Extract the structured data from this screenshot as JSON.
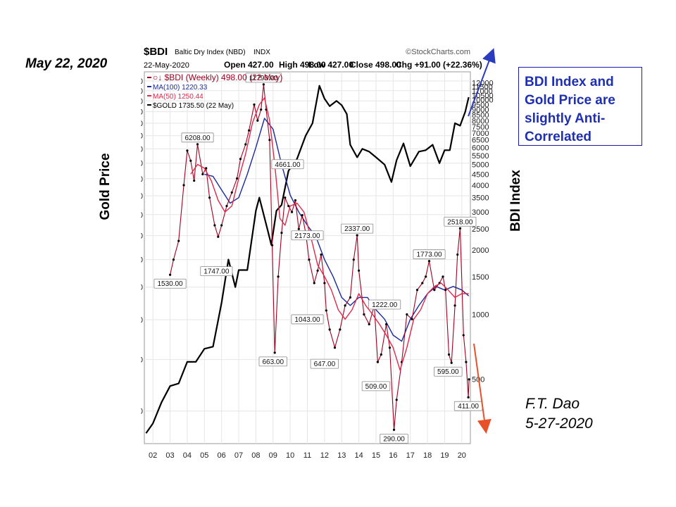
{
  "page": {
    "date_label": "May 22, 2020",
    "gold_axis_title": "Gold Price",
    "bdi_axis_title": "BDI Index",
    "note": "BDI Index and Gold Price are slightly Anti-Correlated",
    "author": "F.T. Dao",
    "author_date": "5-27-2020"
  },
  "colors": {
    "gold": "#000000",
    "bdi": "#a00020",
    "ma50": "#e0284a",
    "ma100": "#1a2a9a",
    "note_text": "#1e2fb0",
    "arrow_up": "#2b3cc0",
    "arrow_down": "#e8502a"
  },
  "chart_data": {
    "type": "line",
    "header": {
      "symbol": "$BDI",
      "name": "Baltic Dry Index (NBD)",
      "exchange": "INDX",
      "source": "©StockCharts.com",
      "date": "22-May-2020",
      "open": "Open 427.00",
      "high": "High 498.00",
      "low": "Low 427.00",
      "close": "Close 498.00",
      "chg": "Chg +91.00 (+22.36%)"
    },
    "legend": [
      {
        "key": "bdi",
        "label": "○↓ $BDI (Weekly) 498.00 (22 May)"
      },
      {
        "key": "ma100",
        "label": "MA(100) 1220.33"
      },
      {
        "key": "ma50",
        "label": "MA(50) 1250.44"
      },
      {
        "key": "gold",
        "label": "$GOLD 1735.50 (22 May)"
      }
    ],
    "x_ticks": [
      "02",
      "03",
      "04",
      "05",
      "06",
      "07",
      "08",
      "09",
      "10",
      "11",
      "12",
      "13",
      "14",
      "15",
      "16",
      "17",
      "18",
      "19",
      "20"
    ],
    "xlim": [
      2001.5,
      2020.5
    ],
    "gold_axis": {
      "scale": "log",
      "ylim": [
        250,
        2000
      ],
      "ticks": [
        300,
        400,
        500,
        600,
        700,
        800,
        900,
        1000,
        1100,
        1200,
        1300,
        1400,
        1500,
        1600,
        1700,
        1800,
        1900
      ]
    },
    "bdi_axis": {
      "scale": "log",
      "ylim": [
        250,
        13500
      ],
      "ticks": [
        500,
        1000,
        1500,
        2000,
        2500,
        3000,
        3500,
        4000,
        4500,
        5000,
        5500,
        6000,
        6500,
        7000,
        7500,
        8000,
        8500,
        9000,
        9500,
        10000,
        10500,
        11000,
        11500,
        12000
      ],
      "tick_labels": [
        "500",
        "1000",
        "1500",
        "2000",
        "2500",
        "3000",
        "3500",
        "4000",
        "4500",
        "5000",
        "5500",
        "6000",
        "6500",
        "7000",
        "7500",
        "8000",
        "8500",
        "9000",
        "9500",
        "10000",
        "10500",
        "11000",
        "11500",
        "12000"
      ]
    },
    "series": [
      {
        "name": "$GOLD",
        "key": "gold",
        "axis": "gold",
        "x": [
          2001.6,
          2002.0,
          2002.5,
          2003.0,
          2003.5,
          2004.0,
          2004.5,
          2005.0,
          2005.5,
          2006.0,
          2006.4,
          2006.8,
          2007.0,
          2007.5,
          2008.0,
          2008.2,
          2008.7,
          2008.9,
          2009.2,
          2009.5,
          2009.9,
          2010.4,
          2010.9,
          2011.3,
          2011.7,
          2012.0,
          2012.3,
          2012.7,
          2013.0,
          2013.3,
          2013.5,
          2013.9,
          2014.2,
          2014.6,
          2015.0,
          2015.5,
          2015.9,
          2016.2,
          2016.6,
          2017.0,
          2017.5,
          2017.9,
          2018.3,
          2018.7,
          2019.0,
          2019.3,
          2019.6,
          2019.9,
          2020.2,
          2020.4
        ],
        "y": [
          265,
          280,
          315,
          345,
          350,
          395,
          395,
          425,
          430,
          550,
          700,
          600,
          660,
          660,
          920,
          990,
          820,
          760,
          920,
          950,
          1150,
          1230,
          1400,
          1500,
          1850,
          1720,
          1650,
          1700,
          1660,
          1580,
          1330,
          1240,
          1300,
          1280,
          1240,
          1190,
          1080,
          1220,
          1340,
          1180,
          1280,
          1290,
          1330,
          1200,
          1290,
          1290,
          1500,
          1480,
          1600,
          1735.5
        ]
      },
      {
        "name": "$BDI (Weekly)",
        "key": "bdi",
        "axis": "bdi",
        "x": [
          2003.0,
          2003.2,
          2003.5,
          2003.8,
          2004.0,
          2004.2,
          2004.4,
          2004.6,
          2004.9,
          2005.1,
          2005.3,
          2005.6,
          2005.8,
          2006.0,
          2006.3,
          2006.6,
          2006.9,
          2007.1,
          2007.4,
          2007.6,
          2007.9,
          2008.1,
          2008.3,
          2008.45,
          2008.6,
          2008.8,
          2008.95,
          2009.1,
          2009.3,
          2009.5,
          2009.7,
          2009.9,
          2010.1,
          2010.3,
          2010.5,
          2010.7,
          2010.9,
          2011.1,
          2011.4,
          2011.6,
          2011.8,
          2012.0,
          2012.1,
          2012.3,
          2012.6,
          2012.9,
          2013.2,
          2013.5,
          2013.7,
          2013.9,
          2014.0,
          2014.3,
          2014.6,
          2014.9,
          2015.1,
          2015.3,
          2015.6,
          2015.8,
          2016.05,
          2016.2,
          2016.5,
          2016.8,
          2017.1,
          2017.4,
          2017.7,
          2017.9,
          2018.1,
          2018.4,
          2018.7,
          2018.9,
          2019.05,
          2019.25,
          2019.4,
          2019.6,
          2019.75,
          2019.9,
          2020.1,
          2020.25,
          2020.38,
          2020.42
        ],
        "y": [
          1530,
          1800,
          2200,
          4000,
          5800,
          5200,
          4200,
          6208,
          4500,
          4800,
          3500,
          2600,
          2300,
          2600,
          3200,
          3700,
          4300,
          5300,
          6200,
          7200,
          9500,
          8000,
          9000,
          11793,
          9000,
          6500,
          2100,
          663,
          1500,
          2400,
          3500,
          3200,
          3000,
          3400,
          2500,
          2900,
          2400,
          1800,
          1400,
          1600,
          1900,
          1400,
          1043,
          850,
          700,
          850,
          1100,
          1200,
          1800,
          2337,
          1600,
          1000,
          900,
          1100,
          600,
          650,
          900,
          700,
          290,
          400,
          600,
          1000,
          950,
          1300,
          1400,
          1500,
          1773,
          1300,
          1400,
          1500,
          1300,
          650,
          595,
          1100,
          1900,
          2518,
          800,
          600,
          411,
          498
        ]
      },
      {
        "name": "MA(50)",
        "key": "ma50",
        "axis": "bdi",
        "x": [
          2004.2,
          2004.6,
          2005.0,
          2005.4,
          2005.8,
          2006.2,
          2006.6,
          2007.0,
          2007.4,
          2007.8,
          2008.2,
          2008.5,
          2008.8,
          2009.1,
          2009.4,
          2009.7,
          2010.0,
          2010.4,
          2010.8,
          2011.2,
          2011.6,
          2012.0,
          2012.4,
          2012.8,
          2013.2,
          2013.6,
          2014.0,
          2014.4,
          2014.8,
          2015.2,
          2015.6,
          2016.0,
          2016.4,
          2016.8,
          2017.2,
          2017.6,
          2018.0,
          2018.4,
          2018.8,
          2019.2,
          2019.6,
          2020.0,
          2020.4
        ],
        "y": [
          4500,
          5000,
          4800,
          4200,
          3400,
          3000,
          3200,
          4300,
          5600,
          7800,
          9500,
          10200,
          8000,
          5000,
          2800,
          2600,
          3200,
          3300,
          3000,
          2300,
          1700,
          1500,
          1300,
          1050,
          950,
          1050,
          1250,
          1100,
          1000,
          900,
          800,
          700,
          550,
          700,
          950,
          1050,
          1250,
          1350,
          1400,
          1300,
          1200,
          1250,
          1250
        ]
      },
      {
        "name": "MA(100)",
        "key": "ma100",
        "axis": "bdi",
        "x": [
          2005.0,
          2005.5,
          2006.0,
          2006.5,
          2007.0,
          2007.5,
          2008.0,
          2008.5,
          2009.0,
          2009.5,
          2010.0,
          2010.5,
          2011.0,
          2011.5,
          2012.0,
          2012.5,
          2013.0,
          2013.5,
          2014.0,
          2014.5,
          2015.0,
          2015.5,
          2016.0,
          2016.5,
          2017.0,
          2017.5,
          2018.0,
          2018.5,
          2019.0,
          2019.5,
          2020.0,
          2020.4
        ],
        "y": [
          4500,
          4400,
          3800,
          3300,
          3500,
          4500,
          6000,
          8200,
          7300,
          5000,
          3600,
          3000,
          2600,
          2300,
          1800,
          1500,
          1200,
          1100,
          1200,
          1200,
          1050,
          950,
          800,
          750,
          950,
          1100,
          1250,
          1350,
          1300,
          1350,
          1300,
          1220
        ]
      }
    ],
    "annotations": [
      {
        "text": "1530.00",
        "x": 2003.0,
        "y": 1530
      },
      {
        "text": "6208.00",
        "x": 2004.6,
        "y": 6208
      },
      {
        "text": "1747.00",
        "x": 2005.7,
        "y": 1747
      },
      {
        "text": "11793.00",
        "x": 2008.45,
        "y": 11793
      },
      {
        "text": "4661.00",
        "x": 2009.85,
        "y": 4661
      },
      {
        "text": "663.00",
        "x": 2009.0,
        "y": 663
      },
      {
        "text": "2173.00",
        "x": 2011.0,
        "y": 2173
      },
      {
        "text": "1043.00",
        "x": 2011.0,
        "y": 1043
      },
      {
        "text": "647.00",
        "x": 2012.0,
        "y": 647
      },
      {
        "text": "2337.00",
        "x": 2013.9,
        "y": 2337
      },
      {
        "text": "1222.00",
        "x": 2015.5,
        "y": 1222
      },
      {
        "text": "509.00",
        "x": 2015.0,
        "y": 509
      },
      {
        "text": "290.00",
        "x": 2016.05,
        "y": 290
      },
      {
        "text": "1773.00",
        "x": 2018.1,
        "y": 1773
      },
      {
        "text": "2518.00",
        "x": 2019.9,
        "y": 2518
      },
      {
        "text": "595.00",
        "x": 2019.2,
        "y": 595
      },
      {
        "text": "411.00",
        "x": 2020.38,
        "y": 411
      }
    ]
  }
}
